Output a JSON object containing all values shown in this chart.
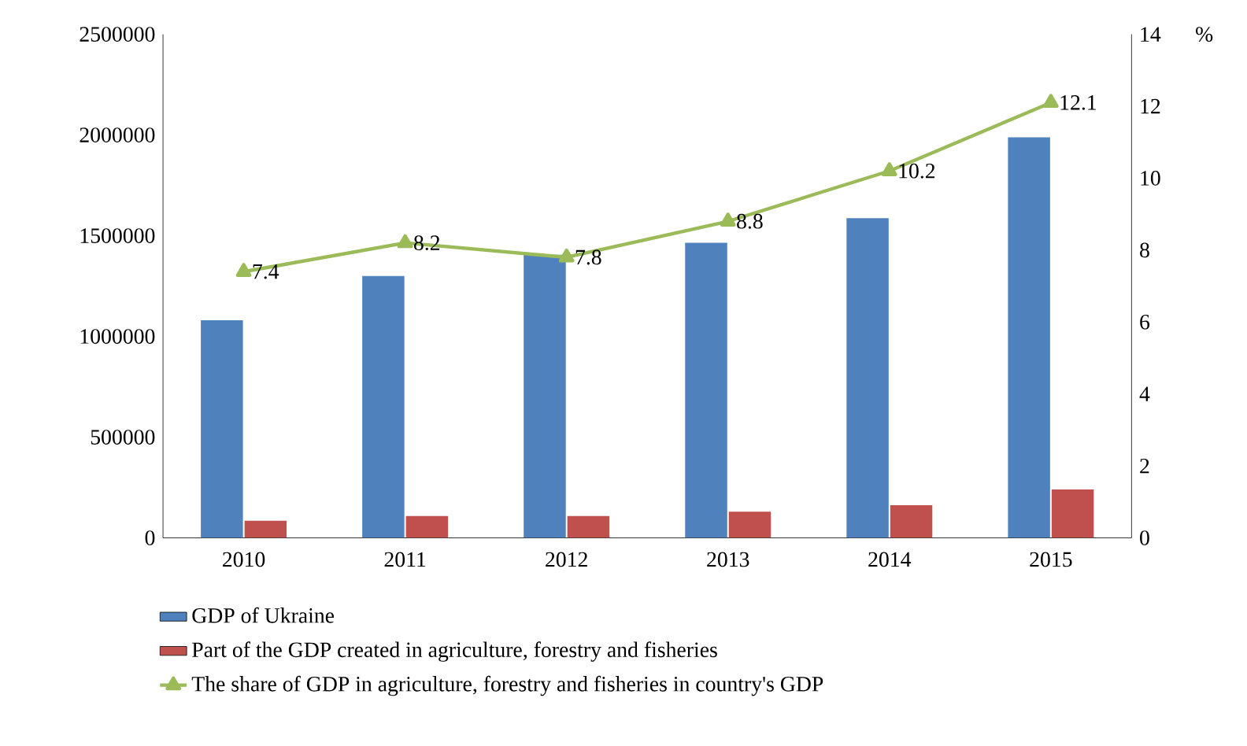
{
  "chart_data": {
    "type": "bar",
    "y2label": "%",
    "categories": [
      "2010",
      "2011",
      "2012",
      "2013",
      "2014",
      "2015"
    ],
    "series": [
      {
        "name": "GDP of Ukraine",
        "color": "#4f81bd",
        "values": [
          1080000,
          1300000,
          1405000,
          1465000,
          1587000,
          1989000
        ]
      },
      {
        "name": "Part of the GDP created in agriculture, forestry and fisheries",
        "color": "#c0504d",
        "values": [
          85000,
          108000,
          108000,
          130000,
          162000,
          240000
        ]
      },
      {
        "name": "The share of GDP in agriculture, forestry and fisheries in country's GDP",
        "type": "line",
        "axis": "y2",
        "color": "#9bbb59",
        "marker": "triangle",
        "values": [
          7.4,
          8.2,
          7.8,
          8.8,
          10.2,
          12.1
        ],
        "value_labels": [
          "7.4",
          "8.2",
          "7.8",
          "8.8",
          "10.2",
          "12.1"
        ]
      }
    ],
    "ylim": [
      0,
      2500000
    ],
    "yticks": [
      0,
      500000,
      1000000,
      1500000,
      2000000,
      2500000
    ],
    "y2lim": [
      0,
      14
    ],
    "y2ticks": [
      0,
      2,
      4,
      6,
      8,
      10,
      12,
      14
    ],
    "legend": "bottom"
  }
}
